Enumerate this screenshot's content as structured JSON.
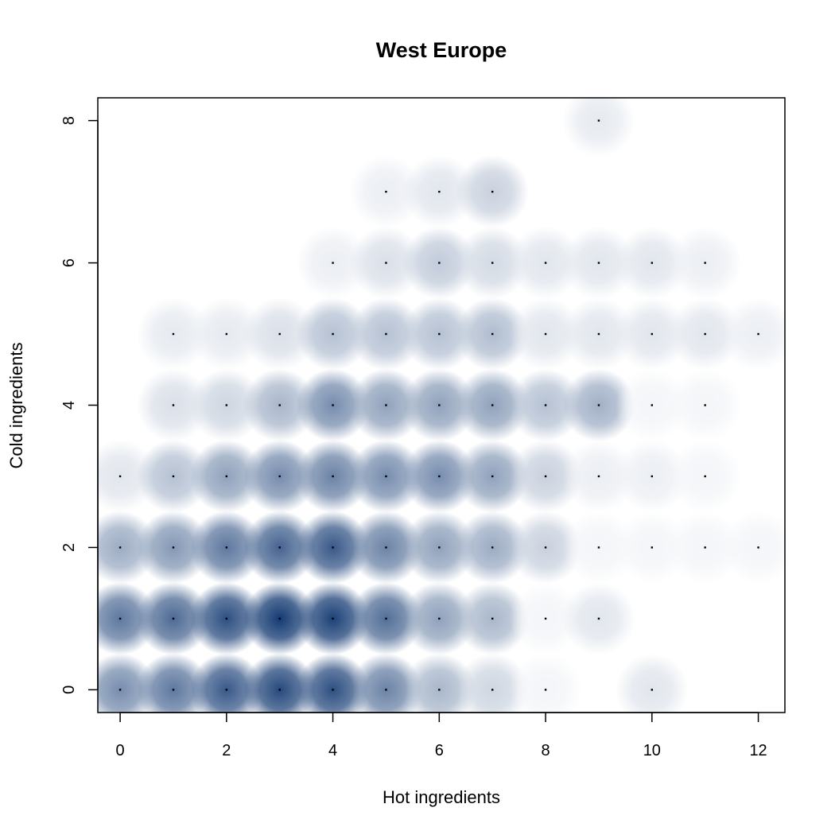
{
  "chart_data": {
    "type": "heatmap",
    "title": "West Europe",
    "xlabel": "Hot ingredients",
    "ylabel": "Cold ingredients",
    "xlim": [
      -0.42,
      12.5
    ],
    "ylim": [
      -0.32,
      8.32
    ],
    "x_ticks": [
      "0",
      "2",
      "4",
      "6",
      "8",
      "10",
      "12"
    ],
    "y_ticks": [
      "0",
      "2",
      "4",
      "6",
      "8"
    ],
    "color_low": "#ffffff",
    "color_high": "#08306b",
    "points": [
      {
        "x": 0,
        "y": 0,
        "v": 0.55
      },
      {
        "x": 1,
        "y": 0,
        "v": 0.65
      },
      {
        "x": 2,
        "y": 0,
        "v": 0.8
      },
      {
        "x": 3,
        "y": 0,
        "v": 0.88
      },
      {
        "x": 4,
        "y": 0,
        "v": 0.85
      },
      {
        "x": 5,
        "y": 0,
        "v": 0.6
      },
      {
        "x": 6,
        "y": 0,
        "v": 0.35
      },
      {
        "x": 7,
        "y": 0,
        "v": 0.2
      },
      {
        "x": 8,
        "y": 0,
        "v": 0.05
      },
      {
        "x": 10,
        "y": 0,
        "v": 0.12
      },
      {
        "x": 0,
        "y": 1,
        "v": 0.65
      },
      {
        "x": 1,
        "y": 1,
        "v": 0.72
      },
      {
        "x": 2,
        "y": 1,
        "v": 0.85
      },
      {
        "x": 3,
        "y": 1,
        "v": 0.95
      },
      {
        "x": 4,
        "y": 1,
        "v": 0.92
      },
      {
        "x": 5,
        "y": 1,
        "v": 0.7
      },
      {
        "x": 6,
        "y": 1,
        "v": 0.45
      },
      {
        "x": 7,
        "y": 1,
        "v": 0.35
      },
      {
        "x": 8,
        "y": 1,
        "v": 0.05
      },
      {
        "x": 9,
        "y": 1,
        "v": 0.12
      },
      {
        "x": 0,
        "y": 2,
        "v": 0.4
      },
      {
        "x": 1,
        "y": 2,
        "v": 0.5
      },
      {
        "x": 2,
        "y": 2,
        "v": 0.65
      },
      {
        "x": 3,
        "y": 2,
        "v": 0.75
      },
      {
        "x": 4,
        "y": 2,
        "v": 0.8
      },
      {
        "x": 5,
        "y": 2,
        "v": 0.6
      },
      {
        "x": 6,
        "y": 2,
        "v": 0.45
      },
      {
        "x": 7,
        "y": 2,
        "v": 0.4
      },
      {
        "x": 8,
        "y": 2,
        "v": 0.22
      },
      {
        "x": 9,
        "y": 2,
        "v": 0.05
      },
      {
        "x": 10,
        "y": 2,
        "v": 0.05
      },
      {
        "x": 11,
        "y": 2,
        "v": 0.05
      },
      {
        "x": 12,
        "y": 2,
        "v": 0.05
      },
      {
        "x": 0,
        "y": 3,
        "v": 0.12
      },
      {
        "x": 1,
        "y": 3,
        "v": 0.3
      },
      {
        "x": 2,
        "y": 3,
        "v": 0.45
      },
      {
        "x": 3,
        "y": 3,
        "v": 0.55
      },
      {
        "x": 4,
        "y": 3,
        "v": 0.6
      },
      {
        "x": 5,
        "y": 3,
        "v": 0.55
      },
      {
        "x": 6,
        "y": 3,
        "v": 0.55
      },
      {
        "x": 7,
        "y": 3,
        "v": 0.45
      },
      {
        "x": 8,
        "y": 3,
        "v": 0.22
      },
      {
        "x": 9,
        "y": 3,
        "v": 0.08
      },
      {
        "x": 10,
        "y": 3,
        "v": 0.08
      },
      {
        "x": 11,
        "y": 3,
        "v": 0.05
      },
      {
        "x": 1,
        "y": 4,
        "v": 0.15
      },
      {
        "x": 2,
        "y": 4,
        "v": 0.2
      },
      {
        "x": 3,
        "y": 4,
        "v": 0.35
      },
      {
        "x": 4,
        "y": 4,
        "v": 0.55
      },
      {
        "x": 5,
        "y": 4,
        "v": 0.45
      },
      {
        "x": 6,
        "y": 4,
        "v": 0.45
      },
      {
        "x": 7,
        "y": 4,
        "v": 0.45
      },
      {
        "x": 8,
        "y": 4,
        "v": 0.3
      },
      {
        "x": 9,
        "y": 4,
        "v": 0.38
      },
      {
        "x": 10,
        "y": 4,
        "v": 0.05
      },
      {
        "x": 11,
        "y": 4,
        "v": 0.05
      },
      {
        "x": 1,
        "y": 5,
        "v": 0.1
      },
      {
        "x": 2,
        "y": 5,
        "v": 0.1
      },
      {
        "x": 3,
        "y": 5,
        "v": 0.15
      },
      {
        "x": 4,
        "y": 5,
        "v": 0.3
      },
      {
        "x": 5,
        "y": 5,
        "v": 0.3
      },
      {
        "x": 6,
        "y": 5,
        "v": 0.3
      },
      {
        "x": 7,
        "y": 5,
        "v": 0.32
      },
      {
        "x": 8,
        "y": 5,
        "v": 0.12
      },
      {
        "x": 9,
        "y": 5,
        "v": 0.12
      },
      {
        "x": 10,
        "y": 5,
        "v": 0.12
      },
      {
        "x": 11,
        "y": 5,
        "v": 0.12
      },
      {
        "x": 12,
        "y": 5,
        "v": 0.08
      },
      {
        "x": 4,
        "y": 6,
        "v": 0.08
      },
      {
        "x": 5,
        "y": 6,
        "v": 0.15
      },
      {
        "x": 6,
        "y": 6,
        "v": 0.25
      },
      {
        "x": 7,
        "y": 6,
        "v": 0.18
      },
      {
        "x": 8,
        "y": 6,
        "v": 0.12
      },
      {
        "x": 9,
        "y": 6,
        "v": 0.12
      },
      {
        "x": 10,
        "y": 6,
        "v": 0.12
      },
      {
        "x": 11,
        "y": 6,
        "v": 0.08
      },
      {
        "x": 5,
        "y": 7,
        "v": 0.08
      },
      {
        "x": 6,
        "y": 7,
        "v": 0.12
      },
      {
        "x": 7,
        "y": 7,
        "v": 0.22
      },
      {
        "x": 9,
        "y": 8,
        "v": 0.1
      }
    ]
  }
}
